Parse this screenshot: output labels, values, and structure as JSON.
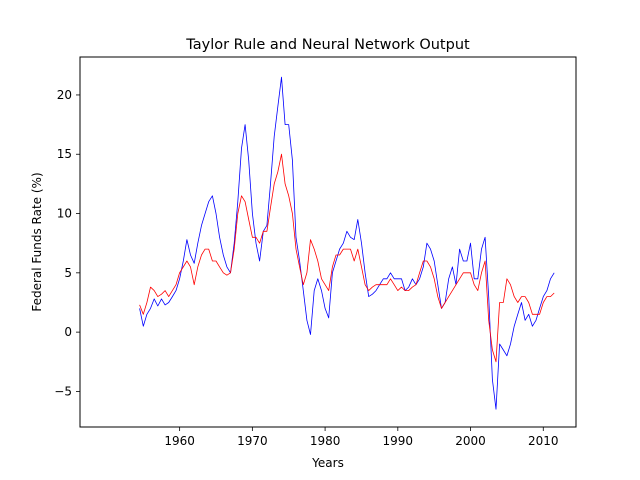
{
  "chart_data": {
    "type": "line",
    "title": "Taylor Rule and Neural Network Output",
    "xlabel": "Years",
    "ylabel": "Federal Funds Rate (%)",
    "xlim": [
      1946.3,
      2014.5
    ],
    "ylim": [
      -8.0,
      23.2
    ],
    "xticks": [
      1960,
      1970,
      1980,
      1990,
      2000,
      2010
    ],
    "yticks": [
      -5,
      0,
      5,
      10,
      15,
      20
    ],
    "xtick_labels": [
      "1960",
      "1970",
      "1980",
      "1990",
      "2000",
      "2010"
    ],
    "ytick_labels": [
      "−5",
      "0",
      "5",
      "10",
      "15",
      "20"
    ],
    "grid": false,
    "legend": "none",
    "series": [
      {
        "color": "#0000ff",
        "x": [
          1954.5,
          1955.0,
          1955.5,
          1956.0,
          1956.5,
          1957.0,
          1957.5,
          1958.0,
          1958.5,
          1959.0,
          1959.5,
          1960.0,
          1960.5,
          1961.0,
          1961.5,
          1962.0,
          1962.5,
          1963.0,
          1963.5,
          1964.0,
          1964.5,
          1965.0,
          1965.5,
          1966.0,
          1966.5,
          1967.0,
          1967.5,
          1968.0,
          1968.5,
          1969.0,
          1969.5,
          1970.0,
          1970.5,
          1971.0,
          1971.5,
          1972.0,
          1972.5,
          1973.0,
          1973.5,
          1974.0,
          1974.5,
          1975.0,
          1975.5,
          1976.0,
          1976.5,
          1977.0,
          1977.5,
          1978.0,
          1978.5,
          1979.0,
          1979.5,
          1980.0,
          1980.5,
          1981.0,
          1981.5,
          1982.0,
          1982.5,
          1983.0,
          1983.5,
          1984.0,
          1984.5,
          1985.0,
          1985.5,
          1986.0,
          1986.5,
          1987.0,
          1987.5,
          1988.0,
          1988.5,
          1989.0,
          1989.5,
          1990.0,
          1990.5,
          1991.0,
          1991.5,
          1992.0,
          1992.5,
          1993.0,
          1993.5,
          1994.0,
          1994.5,
          1995.0,
          1995.5,
          1996.0,
          1996.5,
          1997.0,
          1997.5,
          1998.0,
          1998.5,
          1999.0,
          1999.5,
          2000.0,
          2000.5,
          2001.0,
          2001.5,
          2002.0,
          2002.5,
          2003.0,
          2003.5,
          2004.0,
          2004.5,
          2005.0,
          2005.5,
          2006.0,
          2006.5,
          2007.0,
          2007.5,
          2008.0,
          2008.5,
          2009.0,
          2009.5,
          2010.0,
          2010.5,
          2011.0,
          2011.5
        ],
        "y": [
          2.0,
          0.5,
          1.5,
          2.0,
          2.8,
          2.2,
          2.8,
          2.3,
          2.5,
          3.0,
          3.5,
          4.5,
          6.0,
          7.8,
          6.5,
          5.8,
          7.5,
          9.0,
          10.0,
          11.0,
          11.5,
          10.0,
          8.0,
          6.5,
          5.5,
          5.0,
          7.5,
          11.0,
          15.5,
          17.5,
          14.5,
          10.0,
          7.5,
          6.0,
          8.5,
          9.0,
          12.5,
          16.5,
          19.0,
          21.5,
          17.5,
          17.5,
          14.5,
          8.0,
          6.0,
          3.5,
          1.0,
          -0.2,
          3.5,
          4.5,
          3.5,
          2.0,
          1.2,
          5.0,
          6.0,
          7.0,
          7.5,
          8.5,
          8.0,
          7.8,
          9.5,
          7.5,
          5.0,
          3.0,
          3.2,
          3.5,
          4.0,
          4.5,
          4.5,
          5.0,
          4.5,
          4.5,
          4.5,
          3.5,
          3.8,
          4.5,
          4.0,
          4.5,
          5.5,
          7.5,
          7.0,
          6.0,
          4.0,
          2.0,
          2.5,
          4.5,
          5.5,
          4.0,
          7.0,
          6.0,
          6.0,
          7.5,
          4.5,
          4.5,
          7.0,
          8.0,
          3.0,
          -4.0,
          -6.5,
          -1.0,
          -1.5,
          -2.0,
          -1.0,
          0.5,
          1.5,
          2.5,
          1.0,
          1.5,
          0.5,
          1.0,
          2.0,
          3.0,
          3.5,
          4.5,
          5.0
        ]
      },
      {
        "color": "#ff0000",
        "x": [
          1954.5,
          1955.0,
          1955.5,
          1956.0,
          1956.5,
          1957.0,
          1957.5,
          1958.0,
          1958.5,
          1959.0,
          1959.5,
          1960.0,
          1960.5,
          1961.0,
          1961.5,
          1962.0,
          1962.5,
          1963.0,
          1963.5,
          1964.0,
          1964.5,
          1965.0,
          1965.5,
          1966.0,
          1966.5,
          1967.0,
          1967.5,
          1968.0,
          1968.5,
          1969.0,
          1969.5,
          1970.0,
          1970.5,
          1971.0,
          1971.5,
          1972.0,
          1972.5,
          1973.0,
          1973.5,
          1974.0,
          1974.5,
          1975.0,
          1975.5,
          1976.0,
          1976.5,
          1977.0,
          1977.5,
          1978.0,
          1978.5,
          1979.0,
          1979.5,
          1980.0,
          1980.5,
          1981.0,
          1981.5,
          1982.0,
          1982.5,
          1983.0,
          1983.5,
          1984.0,
          1984.5,
          1985.0,
          1985.5,
          1986.0,
          1986.5,
          1987.0,
          1987.5,
          1988.0,
          1988.5,
          1989.0,
          1989.5,
          1990.0,
          1990.5,
          1991.0,
          1991.5,
          1992.0,
          1992.5,
          1993.0,
          1993.5,
          1994.0,
          1994.5,
          1995.0,
          1995.5,
          1996.0,
          1996.5,
          1997.0,
          1997.5,
          1998.0,
          1998.5,
          1999.0,
          1999.5,
          2000.0,
          2000.5,
          2001.0,
          2001.5,
          2002.0,
          2002.5,
          2003.0,
          2003.5,
          2004.0,
          2004.5,
          2005.0,
          2005.5,
          2006.0,
          2006.5,
          2007.0,
          2007.5,
          2008.0,
          2008.5,
          2009.0,
          2009.5,
          2010.0,
          2010.5,
          2011.0,
          2011.5
        ],
        "y": [
          2.3,
          1.5,
          2.5,
          3.8,
          3.5,
          3.0,
          3.2,
          3.5,
          3.0,
          3.5,
          4.0,
          5.0,
          5.5,
          6.0,
          5.5,
          4.0,
          5.5,
          6.5,
          7.0,
          7.0,
          6.0,
          6.0,
          5.5,
          5.0,
          4.8,
          5.0,
          7.0,
          10.0,
          11.5,
          11.0,
          9.5,
          8.0,
          8.0,
          7.5,
          8.5,
          8.5,
          10.5,
          12.5,
          13.5,
          15.0,
          12.5,
          11.5,
          10.0,
          7.0,
          5.5,
          4.0,
          5.0,
          7.8,
          7.0,
          6.0,
          4.5,
          4.0,
          3.5,
          5.5,
          6.5,
          6.5,
          7.0,
          7.0,
          7.0,
          6.0,
          7.0,
          5.5,
          4.0,
          3.5,
          3.8,
          4.0,
          4.0,
          4.0,
          4.0,
          4.5,
          4.0,
          3.5,
          3.8,
          3.5,
          3.5,
          3.8,
          4.0,
          5.0,
          6.0,
          6.0,
          5.5,
          4.5,
          3.0,
          2.0,
          2.5,
          3.0,
          3.5,
          4.0,
          4.5,
          5.0,
          5.0,
          5.0,
          4.0,
          3.5,
          5.0,
          6.0,
          1.0,
          -1.5,
          -2.5,
          2.5,
          2.5,
          4.5,
          4.0,
          3.0,
          2.5,
          3.0,
          3.0,
          2.5,
          1.5,
          1.5,
          1.5,
          2.5,
          3.0,
          3.0,
          3.3
        ]
      }
    ]
  }
}
